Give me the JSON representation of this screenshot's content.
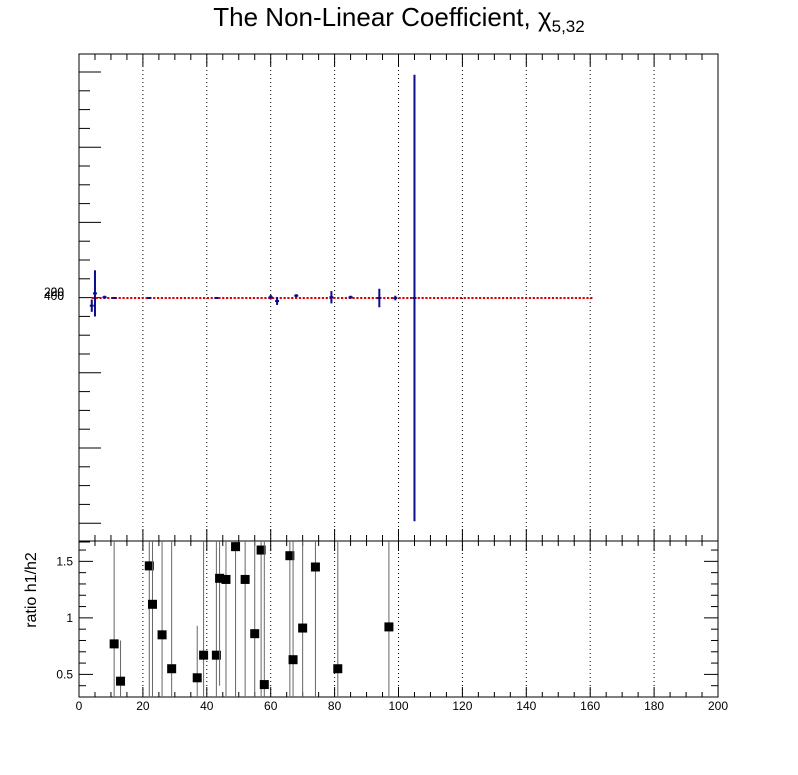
{
  "title": {
    "main": "The Non-Linear Coefficient, χ",
    "sub": "5,32"
  },
  "colors": {
    "h1": "#0b0b8c",
    "h2": "#e00000",
    "ratio": "#000000",
    "ratio_err": "#666666"
  },
  "chart_data": [
    {
      "type": "scatter",
      "panel": "top",
      "title": "The Non-Linear Coefficient, χ5,32",
      "xlim": [
        0,
        200
      ],
      "grid": "vertical dotted",
      "y_tick_labels_overlapping": [
        "200",
        "400",
        "-20",
        "0"
      ],
      "series": [
        {
          "color": "blue",
          "points": [
            {
              "x": 4,
              "y": -10,
              "err": 8
            },
            {
              "x": 5,
              "y": 6,
              "err": 30
            },
            {
              "x": 8,
              "y": 1,
              "err": 2
            },
            {
              "x": 11,
              "y": 0,
              "err": 1
            },
            {
              "x": 22,
              "y": 0,
              "err": 1
            },
            {
              "x": 43,
              "y": 0,
              "err": 1
            },
            {
              "x": 60,
              "y": 1,
              "err": 3
            },
            {
              "x": 62,
              "y": -4,
              "err": 5
            },
            {
              "x": 68,
              "y": 3,
              "err": 2
            },
            {
              "x": 79,
              "y": 1,
              "err": 8
            },
            {
              "x": 85,
              "y": 1,
              "err": 2
            },
            {
              "x": 94,
              "y": 0,
              "err": 12
            },
            {
              "x": 99,
              "y": 0,
              "err": 3
            },
            {
              "x": 105,
              "y": 0,
              "err": 290
            }
          ]
        },
        {
          "color": "red",
          "x_range": [
            4,
            161
          ],
          "y": 0
        }
      ]
    },
    {
      "type": "scatter",
      "panel": "bottom",
      "ylabel": "ratio h1/h2",
      "xlim": [
        0,
        200
      ],
      "ylim": [
        0.3,
        1.68
      ],
      "x_ticks": [
        "0",
        "20",
        "40",
        "60",
        "80",
        "100",
        "120",
        "140",
        "160",
        "180",
        "200"
      ],
      "y_ticks": [
        "0.5",
        "1",
        "1.5"
      ],
      "grid": "vertical dotted",
      "points": [
        {
          "x": 11,
          "y": 0.77,
          "lo": 0.3,
          "hi": 1.7
        },
        {
          "x": 13,
          "y": 0.44,
          "lo": 0.3,
          "hi": 0.8
        },
        {
          "x": 22,
          "y": 1.46,
          "lo": 0.3,
          "hi": 1.7
        },
        {
          "x": 23,
          "y": 1.12,
          "lo": 0.3,
          "hi": 1.7
        },
        {
          "x": 26,
          "y": 0.85,
          "lo": 0.3,
          "hi": 1.7
        },
        {
          "x": 29,
          "y": 0.55,
          "lo": 0.3,
          "hi": 1.7
        },
        {
          "x": 37,
          "y": 0.47,
          "lo": 0.3,
          "hi": 0.93
        },
        {
          "x": 39,
          "y": 0.67,
          "lo": 0.3,
          "hi": 1.7
        },
        {
          "x": 43,
          "y": 0.67,
          "lo": 0.3,
          "hi": 1.7
        },
        {
          "x": 44,
          "y": 1.35,
          "lo": 0.4,
          "hi": 1.7
        },
        {
          "x": 46,
          "y": 1.34,
          "lo": 0.3,
          "hi": 1.7
        },
        {
          "x": 49,
          "y": 1.63,
          "lo": 0.3,
          "hi": 1.7
        },
        {
          "x": 52,
          "y": 1.34,
          "lo": 0.3,
          "hi": 1.7
        },
        {
          "x": 55,
          "y": 0.86,
          "lo": 0.3,
          "hi": 1.7
        },
        {
          "x": 57,
          "y": 1.6,
          "lo": 0.3,
          "hi": 1.7
        },
        {
          "x": 58,
          "y": 0.41,
          "lo": 0.3,
          "hi": 1.7
        },
        {
          "x": 66,
          "y": 1.55,
          "lo": 0.3,
          "hi": 1.7
        },
        {
          "x": 67,
          "y": 0.63,
          "lo": 0.3,
          "hi": 1.7
        },
        {
          "x": 70,
          "y": 0.91,
          "lo": 0.3,
          "hi": 1.7
        },
        {
          "x": 74,
          "y": 1.45,
          "lo": 0.3,
          "hi": 1.7
        },
        {
          "x": 81,
          "y": 0.55,
          "lo": 0.3,
          "hi": 1.7
        },
        {
          "x": 97,
          "y": 0.92,
          "lo": 0.3,
          "hi": 1.7
        }
      ]
    }
  ]
}
